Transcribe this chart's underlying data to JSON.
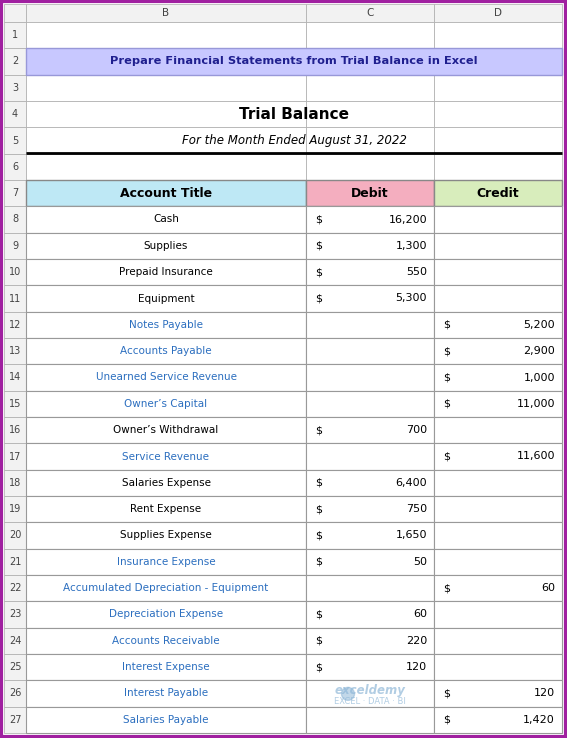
{
  "title_banner": "Prepare Financial Statements from Trial Balance in Excel",
  "title_banner_bg": "#C8C8FF",
  "title_banner_text_color": "#1F1F8F",
  "main_title": "Trial Balance",
  "subtitle": "For the Month Ended August 31, 2022",
  "col_headers": [
    "Account Title",
    "Debit",
    "Credit"
  ],
  "header_bg_col0": "#BEE8F5",
  "header_bg_col1": "#F4AEBF",
  "header_bg_col2": "#D8EDBC",
  "outer_border_color": "#A020A0",
  "grid_color": "#AAAAAA",
  "col_header_bg": "#F2F2F2",
  "col_header_text": "#444444",
  "row_num_bg": "#F2F2F2",
  "row_num_text": "#444444",
  "rows": [
    {
      "account": "Cash",
      "debit": "16,200",
      "credit": ""
    },
    {
      "account": "Supplies",
      "debit": "1,300",
      "credit": ""
    },
    {
      "account": "Prepaid Insurance",
      "debit": "550",
      "credit": ""
    },
    {
      "account": "Equipment",
      "debit": "5,300",
      "credit": ""
    },
    {
      "account": "Notes Payable",
      "debit": "",
      "credit": "5,200"
    },
    {
      "account": "Accounts Payable",
      "debit": "",
      "credit": "2,900"
    },
    {
      "account": "Unearned Service Revenue",
      "debit": "",
      "credit": "1,000"
    },
    {
      "account": "Owner’s Capital",
      "debit": "",
      "credit": "11,000"
    },
    {
      "account": "Owner’s Withdrawal",
      "debit": "700",
      "credit": ""
    },
    {
      "account": "Service Revenue",
      "debit": "",
      "credit": "11,600"
    },
    {
      "account": "Salaries Expense",
      "debit": "6,400",
      "credit": ""
    },
    {
      "account": "Rent Expense",
      "debit": "750",
      "credit": ""
    },
    {
      "account": "Supplies Expense",
      "debit": "1,650",
      "credit": ""
    },
    {
      "account": "Insurance Expense",
      "debit": "50",
      "credit": ""
    },
    {
      "account": "Accumulated Depreciation - Equipment",
      "debit": "",
      "credit": "60"
    },
    {
      "account": "Depreciation Expense",
      "debit": "60",
      "credit": ""
    },
    {
      "account": "Accounts Receivable",
      "debit": "220",
      "credit": ""
    },
    {
      "account": "Interest Expense",
      "debit": "120",
      "credit": ""
    },
    {
      "account": "Interest Payable",
      "debit": "",
      "credit": "120"
    },
    {
      "account": "Salaries Payable",
      "debit": "",
      "credit": "1,420"
    }
  ],
  "row_text_colors": [
    "#000000",
    "#000000",
    "#000000",
    "#000000",
    "#2B6EBF",
    "#2B6EBF",
    "#2B6EBF",
    "#2B6EBF",
    "#000000",
    "#2B6EBF",
    "#000000",
    "#000000",
    "#000000",
    "#2B6EBF",
    "#2B6EBF",
    "#2B6EBF",
    "#2B6EBF",
    "#2B6EBF",
    "#2B6EBF",
    "#2B6EBF"
  ],
  "watermark_text": "exceldemy",
  "watermark_sub": "EXCEL · DATA · BI",
  "watermark_color": "#90B8D8"
}
